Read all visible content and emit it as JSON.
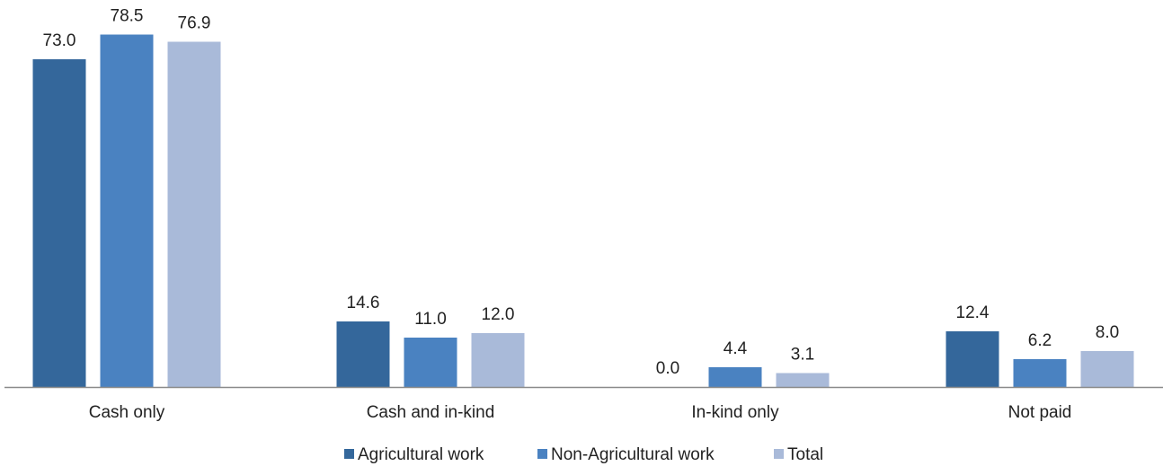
{
  "chart_data": {
    "type": "bar",
    "categories": [
      "Cash only",
      "Cash and in-kind",
      "In-kind only",
      "Not paid"
    ],
    "series": [
      {
        "name": "Agricultural work",
        "color": "#34679b",
        "values": [
          73.0,
          14.6,
          0.0,
          12.4
        ],
        "labels": [
          "73.0",
          "14.6",
          "0.0",
          "12.4"
        ]
      },
      {
        "name": "Non-Agricultural work",
        "color": "#4a82c1",
        "values": [
          78.5,
          11.0,
          4.4,
          6.2
        ],
        "labels": [
          "78.5",
          "11.0",
          "4.4",
          "6.2"
        ]
      },
      {
        "name": "Total",
        "color": "#a9bad9",
        "values": [
          76.9,
          12.0,
          3.1,
          8.0
        ],
        "labels": [
          "76.9",
          "12.0",
          "3.1",
          "8.0"
        ]
      }
    ],
    "title": "",
    "xlabel": "",
    "ylabel": "",
    "ylim": [
      0,
      80
    ],
    "grid": false,
    "legend_position": "bottom",
    "axis_color": "#8a8a8a"
  }
}
